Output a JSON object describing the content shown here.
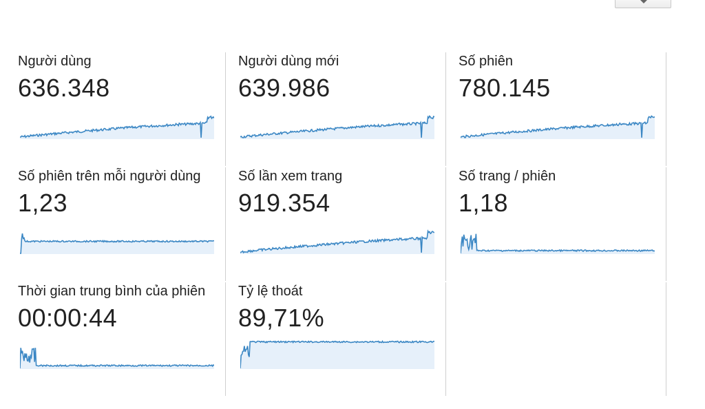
{
  "toolbar": {
    "dropdown_icon": "chevron-down-icon"
  },
  "metrics": [
    {
      "label": "Người dùng",
      "value": "636.348",
      "trend": "growth"
    },
    {
      "label": "Người dùng mới",
      "value": "639.986",
      "trend": "growth"
    },
    {
      "label": "Số phiên",
      "value": "780.145",
      "trend": "growth"
    },
    {
      "label": "Số phiên trên mỗi người dùng",
      "value": "1,23",
      "trend": "spike-flat"
    },
    {
      "label": "Số lần xem trang",
      "value": "919.354",
      "trend": "growth"
    },
    {
      "label": "Số trang / phiên",
      "value": "1,18",
      "trend": "spike-flat-low"
    },
    {
      "label": "Thời gian trung bình của phiên",
      "value": "00:00:44",
      "trend": "spike-flat-low"
    },
    {
      "label": "Tỷ lệ thoát",
      "value": "89,71%",
      "trend": "high-plateau"
    }
  ],
  "colors": {
    "line": "#3b87c4",
    "fill": "#e6f0fa",
    "divider": "#cfcfcf",
    "text": "#212121"
  }
}
